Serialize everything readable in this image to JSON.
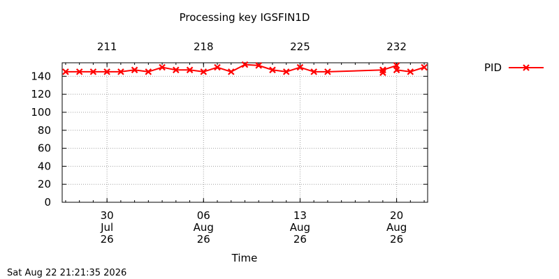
{
  "chart_data": {
    "type": "line",
    "title": "Processing key IGSFIN1D",
    "xlabel": "Time",
    "ylabel": "",
    "x_axis": {
      "unit": "day_of_month_date",
      "range": [
        "2026-07-27",
        "2026-08-22"
      ],
      "bottom_ticks": [
        {
          "date": "2026-07-30",
          "lines": [
            "30",
            "Jul",
            "26"
          ]
        },
        {
          "date": "2026-08-06",
          "lines": [
            "06",
            "Aug",
            "26"
          ]
        },
        {
          "date": "2026-08-13",
          "lines": [
            "13",
            "Aug",
            "26"
          ]
        },
        {
          "date": "2026-08-20",
          "lines": [
            "20",
            "Aug",
            "26"
          ]
        }
      ],
      "top_ticks": [
        {
          "date": "2026-07-30",
          "label": "211"
        },
        {
          "date": "2026-08-06",
          "label": "218"
        },
        {
          "date": "2026-08-13",
          "label": "225"
        },
        {
          "date": "2026-08-20",
          "label": "232"
        }
      ]
    },
    "y_axis": {
      "range": [
        0,
        155
      ],
      "ticks": [
        0,
        20,
        40,
        60,
        80,
        100,
        120,
        140
      ]
    },
    "grid": true,
    "legend": "right",
    "series": [
      {
        "name": "PID",
        "color": "#ff0000",
        "marker": "x-cross",
        "points": [
          {
            "x": "2026-07-27",
            "y": 145
          },
          {
            "x": "2026-07-28",
            "y": 145
          },
          {
            "x": "2026-07-29",
            "y": 145
          },
          {
            "x": "2026-07-30",
            "y": 145
          },
          {
            "x": "2026-07-31",
            "y": 145
          },
          {
            "x": "2026-08-01",
            "y": 147
          },
          {
            "x": "2026-08-02",
            "y": 145
          },
          {
            "x": "2026-08-03",
            "y": 150
          },
          {
            "x": "2026-08-04",
            "y": 147
          },
          {
            "x": "2026-08-05",
            "y": 147
          },
          {
            "x": "2026-08-06",
            "y": 145
          },
          {
            "x": "2026-08-07",
            "y": 150
          },
          {
            "x": "2026-08-08",
            "y": 145
          },
          {
            "x": "2026-08-09",
            "y": 153
          },
          {
            "x": "2026-08-10",
            "y": 152
          },
          {
            "x": "2026-08-11",
            "y": 147
          },
          {
            "x": "2026-08-12",
            "y": 145
          },
          {
            "x": "2026-08-13",
            "y": 150
          },
          {
            "x": "2026-08-14",
            "y": 145
          },
          {
            "x": "2026-08-15",
            "y": 145
          },
          {
            "x": "2026-08-19",
            "y": 147
          },
          {
            "x": "2026-08-19",
            "y": 144
          },
          {
            "x": "2026-08-19",
            "y": 147
          },
          {
            "x": "2026-08-20",
            "y": 152
          },
          {
            "x": "2026-08-20",
            "y": 147
          },
          {
            "x": "2026-08-21",
            "y": 145
          },
          {
            "x": "2026-08-22",
            "y": 150
          }
        ]
      }
    ]
  },
  "footer": {
    "timestamp": "Sat Aug 22 21:21:35 2026"
  }
}
